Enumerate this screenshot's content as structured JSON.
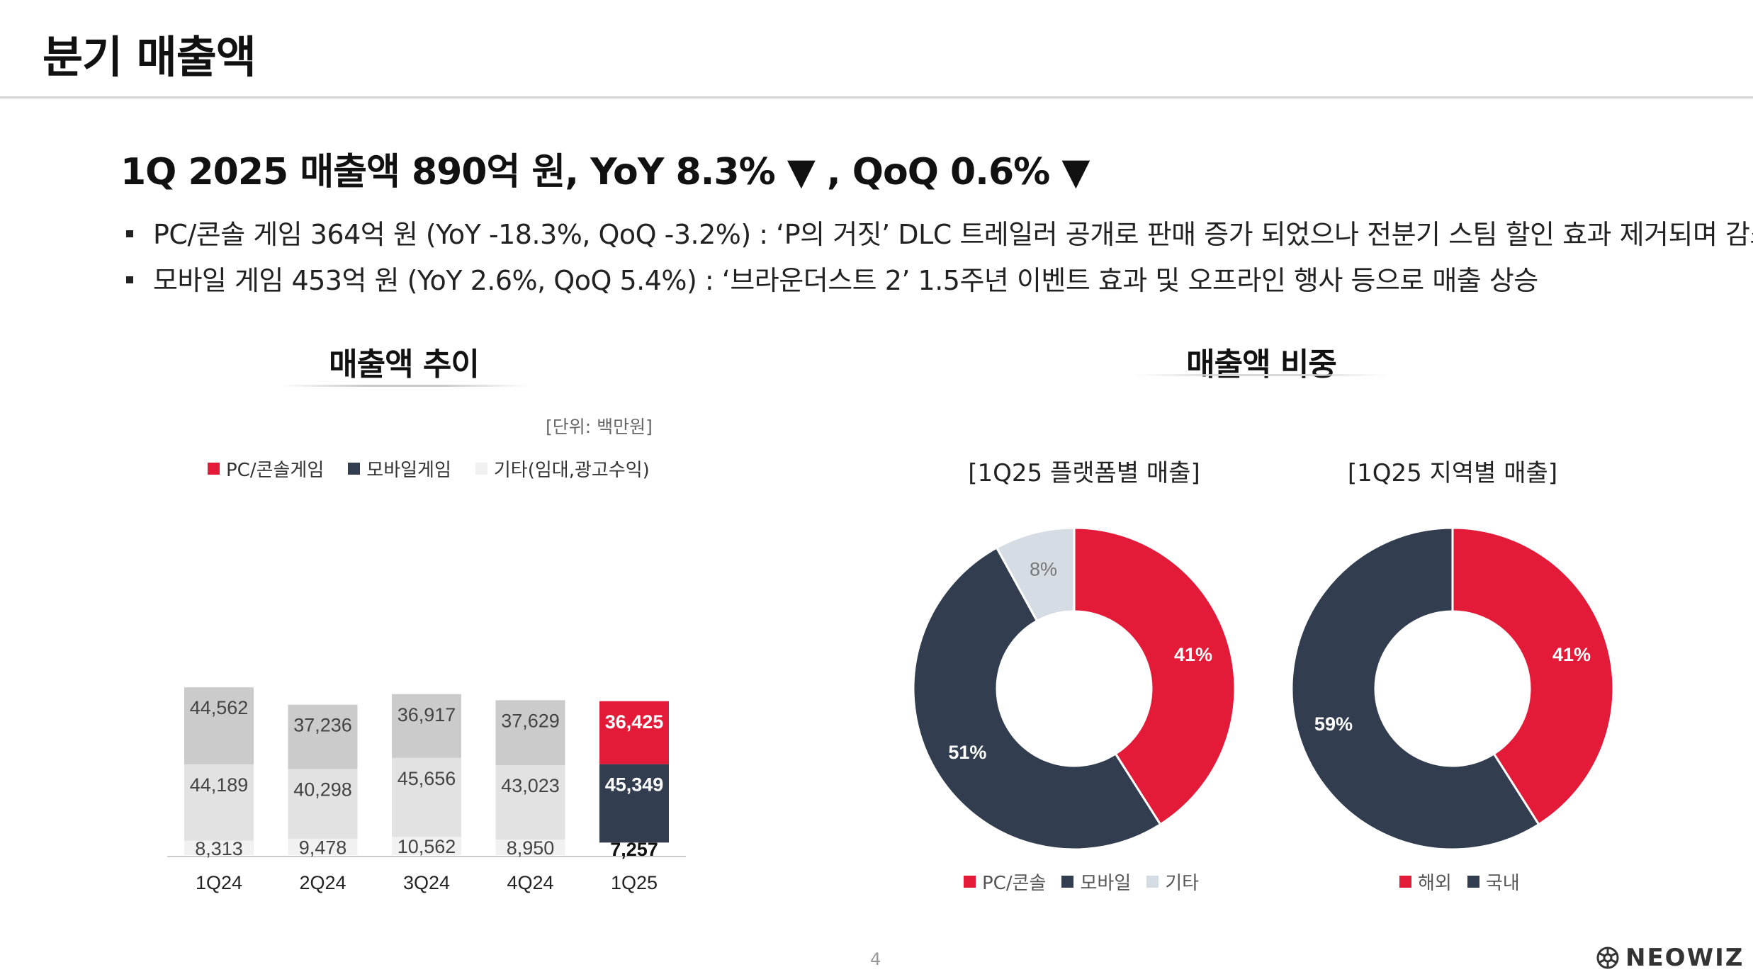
{
  "page": {
    "title": "분기 매출액",
    "headline": "1Q 2025 매출액 890억 원, YoY 8.3% ▼ , QoQ 0.6% ▼",
    "bullets": [
      "PC/콘솔 게임  364억 원 (YoY -18.3%, QoQ -3.2%) : ‘P의 거짓’ DLC 트레일러 공개로 판매 증가 되었으나 전분기 스팀 할인 효과 제거되며 감소",
      "모바일 게임 453억 원 (YoY 2.6%, QoQ 5.4%) : ‘브라운더스트 2’ 1.5주년 이벤트 효과 및 오프라인 행사 등으로 매출 상승"
    ],
    "page_number": "4",
    "logo_text": "NEOWIZ",
    "logo_icon": "neowiz-logo-icon"
  },
  "trend": {
    "title": "매출액 추이",
    "unit": "[단위: 백만원]"
  },
  "share": {
    "title": "매출액 비중",
    "platform_title": "[1Q25 플랫폼별 매출]",
    "region_title": "[1Q25 지역별 매출]"
  },
  "colors": {
    "pc_console": "#E31B38",
    "mobile": "#323D4F",
    "other": "#F1F1F1",
    "pc_console_past": "#CBCBCB",
    "mobile_past": "#E2E2E2",
    "other_pie": "#D6DCE4"
  },
  "chart_data": [
    {
      "type": "bar",
      "stacked": true,
      "categories": [
        "1Q24",
        "2Q24",
        "3Q24",
        "4Q24",
        "1Q25"
      ],
      "series": [
        {
          "name": "기타(임대,광고수익)",
          "values": [
            8313,
            9478,
            10562,
            8950,
            7257
          ]
        },
        {
          "name": "모바일게임",
          "values": [
            44189,
            40298,
            45656,
            43023,
            45349
          ]
        },
        {
          "name": "PC/콘솔게임",
          "values": [
            44562,
            37236,
            36917,
            37629,
            36425
          ]
        }
      ],
      "data_labels": [
        [
          "8,313",
          "9,478",
          "10,562",
          "8,950",
          "7,257"
        ],
        [
          "44,189",
          "40,298",
          "45,656",
          "43,023",
          "45,349"
        ],
        [
          "44,562",
          "37,236",
          "36,917",
          "37,629",
          "36,425"
        ]
      ],
      "legend": [
        "PC/콘솔게임",
        "모바일게임",
        "기타(임대,광고수익)"
      ],
      "legend_position": "top",
      "highlight_category": "1Q25",
      "grid": false
    },
    {
      "type": "pie",
      "donut": true,
      "title": "[1Q25 플랫폼별 매출]",
      "labels": [
        "PC/콘솔",
        "모바일",
        "기타"
      ],
      "values": [
        41,
        51,
        8
      ],
      "value_labels": [
        "41%",
        "51%",
        "8%"
      ],
      "legend_position": "bottom"
    },
    {
      "type": "pie",
      "donut": true,
      "title": "[1Q25 지역별 매출]",
      "labels": [
        "해외",
        "국내"
      ],
      "values": [
        41,
        59
      ],
      "value_labels": [
        "41%",
        "59%"
      ],
      "legend_position": "bottom"
    }
  ]
}
